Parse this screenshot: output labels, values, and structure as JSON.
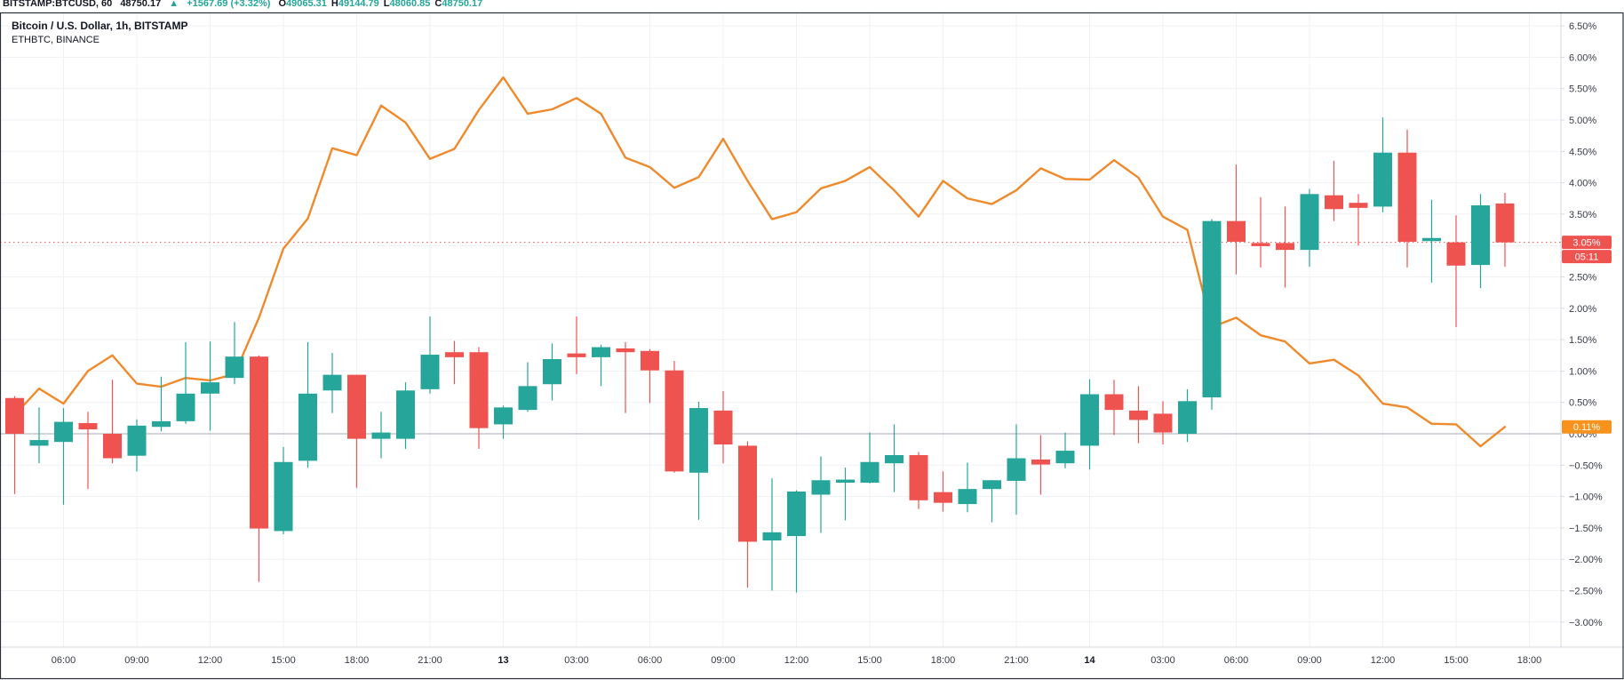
{
  "header": {
    "symbol": "BITSTAMP:BTCUSD, 60",
    "last_price": "48750.17",
    "change_arrow": "▲",
    "change": "+1567.69 (+3.32%)",
    "ohlc": {
      "o_label": "O",
      "o": "49065.31",
      "h_label": "H",
      "h": "49144.79",
      "l_label": "L",
      "l": "48060.85",
      "c_label": "C",
      "c": "48750.17"
    }
  },
  "legend": {
    "line1": "Bitcoin / U.S. Dollar, 1h, BITSTAMP",
    "line2": "ETHBTC, BINANCE"
  },
  "colors": {
    "up": "#26a69a",
    "down": "#ef5350",
    "compare_line": "#ef8a2c",
    "compare_badge": "#f7931c",
    "price_badge": "#ef5350",
    "grid": "#f0f1f5",
    "zero_line": "#a5aab5",
    "axis_text": "#363a45",
    "axis_text_bold": "#131722",
    "frame": "#2a2e39",
    "separator": "#d6d9e0"
  },
  "axes": {
    "y_ticks": [
      {
        "v": 6.5,
        "label": "6.50%"
      },
      {
        "v": 6.0,
        "label": "6.00%"
      },
      {
        "v": 5.5,
        "label": "5.50%"
      },
      {
        "v": 5.0,
        "label": "5.00%"
      },
      {
        "v": 4.5,
        "label": "4.50%"
      },
      {
        "v": 4.0,
        "label": "4.00%"
      },
      {
        "v": 3.5,
        "label": "3.50%"
      },
      {
        "v": 3.0,
        "label": "3.00%"
      },
      {
        "v": 2.5,
        "label": "2.50%"
      },
      {
        "v": 2.0,
        "label": "2.00%"
      },
      {
        "v": 1.5,
        "label": "1.50%"
      },
      {
        "v": 1.0,
        "label": "1.00%"
      },
      {
        "v": 0.5,
        "label": "0.50%"
      },
      {
        "v": 0.0,
        "label": "0.00%"
      },
      {
        "v": -0.5,
        "label": "−0.50%"
      },
      {
        "v": -1.0,
        "label": "−1.00%"
      },
      {
        "v": -1.5,
        "label": "−1.50%"
      },
      {
        "v": -2.0,
        "label": "−2.00%"
      },
      {
        "v": -2.5,
        "label": "−2.50%"
      },
      {
        "v": -3.0,
        "label": "−3.00%"
      }
    ],
    "x_ticks": [
      {
        "label": "06:00",
        "bold": false
      },
      {
        "label": "09:00",
        "bold": false
      },
      {
        "label": "12:00",
        "bold": false
      },
      {
        "label": "15:00",
        "bold": false
      },
      {
        "label": "18:00",
        "bold": false
      },
      {
        "label": "21:00",
        "bold": false
      },
      {
        "label": "13",
        "bold": true
      },
      {
        "label": "03:00",
        "bold": false
      },
      {
        "label": "06:00",
        "bold": false
      },
      {
        "label": "09:00",
        "bold": false
      },
      {
        "label": "12:00",
        "bold": false
      },
      {
        "label": "15:00",
        "bold": false
      },
      {
        "label": "18:00",
        "bold": false
      },
      {
        "label": "21:00",
        "bold": false
      },
      {
        "label": "14",
        "bold": true
      },
      {
        "label": "03:00",
        "bold": false
      },
      {
        "label": "06:00",
        "bold": false
      },
      {
        "label": "09:00",
        "bold": false
      },
      {
        "label": "12:00",
        "bold": false
      },
      {
        "label": "15:00",
        "bold": false
      },
      {
        "label": "18:00",
        "bold": false
      }
    ]
  },
  "badges": {
    "price": {
      "label": "3.05%",
      "countdown": "05:11",
      "value": 3.05
    },
    "compare": {
      "label": "0.11%",
      "value": 0.11
    }
  },
  "chart_data": [
    {
      "type": "candlestick",
      "name": "BTCUSD hourly (percent scale)",
      "ylim": [
        -3.35,
        6.75
      ],
      "grid": true,
      "ohlc_percent": [
        [
          0.57,
          0.6,
          -0.96,
          0.0
        ],
        [
          -0.19,
          0.42,
          -0.47,
          -0.1
        ],
        [
          -0.13,
          0.41,
          -1.13,
          0.19
        ],
        [
          0.17,
          0.35,
          -0.88,
          0.07
        ],
        [
          0.0,
          0.86,
          -0.47,
          -0.39
        ],
        [
          -0.35,
          0.23,
          -0.6,
          0.13
        ],
        [
          0.11,
          0.91,
          0.04,
          0.2
        ],
        [
          0.2,
          1.46,
          0.16,
          0.64
        ],
        [
          0.64,
          1.47,
          0.05,
          0.82
        ],
        [
          0.89,
          1.78,
          0.79,
          1.23
        ],
        [
          1.23,
          1.25,
          -2.36,
          -1.51
        ],
        [
          -1.55,
          -0.21,
          -1.6,
          -0.45
        ],
        [
          -0.43,
          1.46,
          -0.54,
          0.64
        ],
        [
          0.69,
          1.29,
          0.33,
          0.94
        ],
        [
          0.94,
          0.94,
          -0.86,
          -0.08
        ],
        [
          -0.08,
          0.35,
          -0.39,
          0.02
        ],
        [
          -0.08,
          0.82,
          -0.24,
          0.69
        ],
        [
          0.71,
          1.87,
          0.64,
          1.26
        ],
        [
          1.3,
          1.48,
          0.79,
          1.22
        ],
        [
          1.3,
          1.38,
          -0.24,
          0.09
        ],
        [
          0.15,
          0.45,
          -0.08,
          0.42
        ],
        [
          0.38,
          1.14,
          0.35,
          0.76
        ],
        [
          0.79,
          1.44,
          0.53,
          1.19
        ],
        [
          1.28,
          1.87,
          0.95,
          1.22
        ],
        [
          1.22,
          1.42,
          0.76,
          1.38
        ],
        [
          1.36,
          1.46,
          0.33,
          1.3
        ],
        [
          1.32,
          1.35,
          0.49,
          1.01
        ],
        [
          1.01,
          1.16,
          -0.62,
          -0.6
        ],
        [
          -0.62,
          0.51,
          -1.37,
          0.41
        ],
        [
          0.37,
          0.68,
          -0.47,
          -0.17
        ],
        [
          -0.19,
          -0.12,
          -2.45,
          -1.72
        ],
        [
          -1.7,
          -0.71,
          -2.5,
          -1.57
        ],
        [
          -1.63,
          -0.9,
          -2.53,
          -0.92
        ],
        [
          -0.97,
          -0.36,
          -1.58,
          -0.74
        ],
        [
          -0.78,
          -0.54,
          -1.38,
          -0.73
        ],
        [
          -0.78,
          0.02,
          -0.79,
          -0.45
        ],
        [
          -0.47,
          0.15,
          -0.93,
          -0.34
        ],
        [
          -0.34,
          -0.29,
          -1.2,
          -1.06
        ],
        [
          -0.93,
          -0.6,
          -1.24,
          -1.1
        ],
        [
          -1.12,
          -0.46,
          -1.25,
          -0.88
        ],
        [
          -0.88,
          -0.74,
          -1.41,
          -0.74
        ],
        [
          -0.75,
          0.15,
          -1.29,
          -0.39
        ],
        [
          -0.41,
          -0.02,
          -0.97,
          -0.49
        ],
        [
          -0.47,
          0.02,
          -0.55,
          -0.27
        ],
        [
          -0.19,
          0.87,
          -0.57,
          0.63
        ],
        [
          0.63,
          0.86,
          -0.02,
          0.38
        ],
        [
          0.37,
          0.76,
          -0.15,
          0.22
        ],
        [
          0.32,
          0.52,
          -0.17,
          0.02
        ],
        [
          0.0,
          0.71,
          -0.13,
          0.52
        ],
        [
          0.58,
          3.42,
          0.38,
          3.39
        ],
        [
          3.39,
          4.29,
          2.54,
          3.06
        ],
        [
          3.04,
          3.77,
          2.65,
          2.99
        ],
        [
          3.04,
          3.62,
          2.33,
          2.93
        ],
        [
          2.93,
          3.9,
          2.66,
          3.82
        ],
        [
          3.8,
          4.35,
          3.39,
          3.58
        ],
        [
          3.68,
          3.82,
          3.0,
          3.6
        ],
        [
          3.62,
          5.04,
          3.53,
          4.48
        ],
        [
          4.48,
          4.85,
          2.65,
          3.06
        ],
        [
          3.07,
          3.73,
          2.41,
          3.12
        ],
        [
          3.05,
          3.48,
          1.7,
          2.68
        ],
        [
          2.69,
          3.82,
          2.32,
          3.64
        ],
        [
          3.67,
          3.84,
          2.66,
          3.05
        ]
      ]
    },
    {
      "type": "line",
      "name": "ETHBTC BINANCE (percent scale)",
      "values": [
        0.3,
        0.72,
        0.48,
        1.0,
        1.25,
        0.8,
        0.75,
        0.89,
        0.85,
        0.95,
        1.85,
        2.95,
        3.43,
        4.55,
        4.44,
        5.23,
        4.96,
        4.38,
        4.54,
        5.16,
        5.68,
        5.1,
        5.17,
        5.35,
        5.1,
        4.4,
        4.25,
        3.92,
        4.09,
        4.7,
        4.03,
        3.42,
        3.53,
        3.91,
        4.03,
        4.25,
        3.88,
        3.46,
        4.03,
        3.75,
        3.66,
        3.88,
        4.23,
        4.06,
        4.05,
        4.36,
        4.08,
        3.46,
        3.25,
        1.7,
        1.85,
        1.57,
        1.47,
        1.12,
        1.18,
        0.93,
        0.48,
        0.42,
        0.16,
        0.15,
        -0.2,
        0.11
      ]
    }
  ]
}
